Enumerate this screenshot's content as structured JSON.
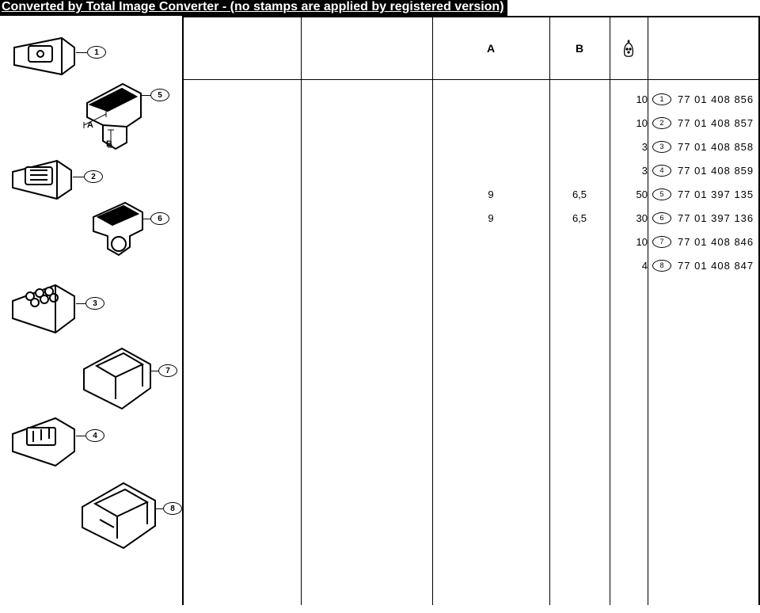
{
  "banner": "Converted by Total Image Converter - (no stamps are applied by registered version)",
  "columns": {
    "c1_w": 150,
    "c2_w": 166,
    "c3_w": 148,
    "c4_w": 76,
    "c5_w": 48,
    "c6_w": 140,
    "header_A": "A",
    "header_B": "B"
  },
  "diagram_callouts": [
    "1",
    "2",
    "3",
    "4",
    "5",
    "6",
    "7",
    "8"
  ],
  "dim_labels": {
    "A": "A",
    "B": "B"
  },
  "rows": [
    {
      "A": "",
      "B": "",
      "qty": "10",
      "ref": "1",
      "pn": "77 01 408 856"
    },
    {
      "A": "",
      "B": "",
      "qty": "10",
      "ref": "2",
      "pn": "77 01 408 857"
    },
    {
      "A": "",
      "B": "",
      "qty": "3",
      "ref": "3",
      "pn": "77 01 408 858"
    },
    {
      "A": "",
      "B": "",
      "qty": "3",
      "ref": "4",
      "pn": "77 01 408 859"
    },
    {
      "A": "9",
      "B": "6,5",
      "qty": "50",
      "ref": "5",
      "pn": "77 01 397 135"
    },
    {
      "A": "9",
      "B": "6,5",
      "qty": "30",
      "ref": "6",
      "pn": "77 01 397 136"
    },
    {
      "A": "",
      "B": "",
      "qty": "10",
      "ref": "7",
      "pn": "77 01 408 846"
    },
    {
      "A": "",
      "B": "",
      "qty": "4",
      "ref": "8",
      "pn": "77 01 408 847"
    }
  ],
  "colors": {
    "bg": "#ffffff",
    "fg": "#000000"
  }
}
